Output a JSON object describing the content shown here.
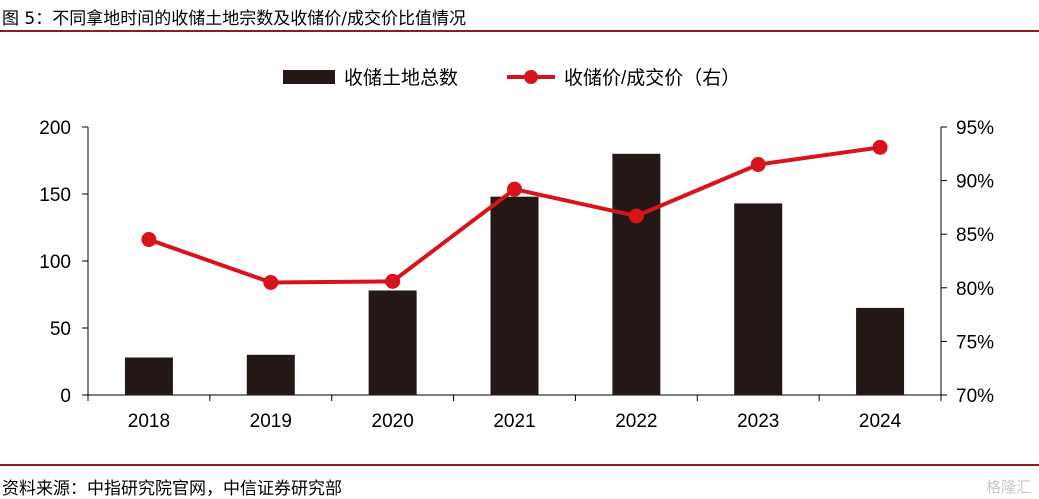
{
  "header": {
    "title": "图 5：不同拿地时间的收储土地宗数及收储价/成交价比值情况"
  },
  "footer": {
    "source": "资料来源：中指研究院官网，中信证券研究部",
    "watermark": "格隆汇"
  },
  "chart_data": {
    "type": "bar",
    "categories": [
      "2018",
      "2019",
      "2020",
      "2021",
      "2022",
      "2023",
      "2024"
    ],
    "series": [
      {
        "name": "收储土地总数",
        "type": "bar",
        "axis": "left",
        "color": "#231815",
        "values": [
          28,
          30,
          78,
          148,
          180,
          143,
          65
        ]
      },
      {
        "name": "收储价/成交价（右）",
        "type": "line",
        "axis": "right",
        "color": "#d7141b",
        "values": [
          84.5,
          80.5,
          80.6,
          89.2,
          86.7,
          91.5,
          93.1
        ]
      }
    ],
    "y_left": {
      "min": 0,
      "max": 200,
      "ticks": [
        0,
        50,
        100,
        150,
        200
      ],
      "tick_labels": [
        "0",
        "50",
        "100",
        "150",
        "200"
      ]
    },
    "y_right": {
      "min": 70,
      "max": 95,
      "ticks": [
        70,
        75,
        80,
        85,
        90,
        95
      ],
      "tick_labels": [
        "70%",
        "75%",
        "80%",
        "85%",
        "90%",
        "95%"
      ]
    },
    "legend_position": "top-center",
    "grid": false
  }
}
